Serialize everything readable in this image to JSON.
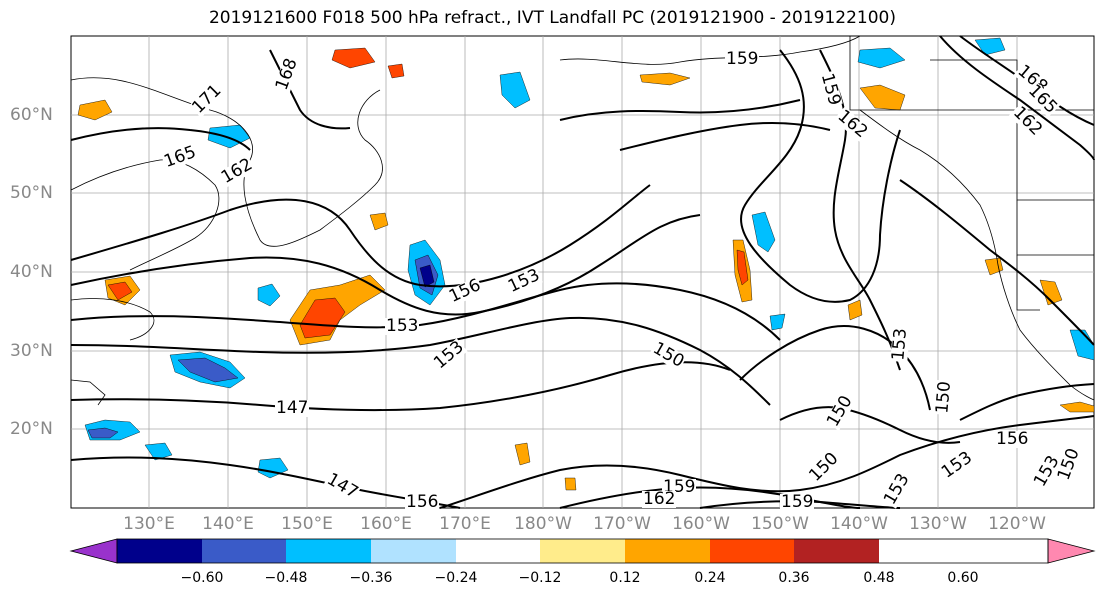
{
  "title": "2019121600 F018 500 hPa refract., IVT Landfall PC (2019121900 - 2019122100)",
  "lat_labels": [
    "60°N",
    "50°N",
    "40°N",
    "30°N",
    "20°N"
  ],
  "lon_labels": [
    "130°E",
    "140°E",
    "150°E",
    "160°E",
    "170°E",
    "180°W",
    "170°W",
    "160°W",
    "150°W",
    "140°W",
    "130°W",
    "120°W"
  ],
  "contour_labels": [
    "159",
    "168",
    "171",
    "165",
    "162",
    "168",
    "165",
    "162",
    "159",
    "162",
    "153",
    "156",
    "153",
    "153",
    "150",
    "147",
    "153",
    "150",
    "150",
    "153",
    "156",
    "153",
    "150",
    "159",
    "162",
    "159",
    "147",
    "156",
    "150",
    "153"
  ],
  "colorbar": {
    "colors": [
      "#9932cc",
      "#00008b",
      "#3a5bc8",
      "#00bfff",
      "#b0e2ff",
      "#ffffff",
      "#ffec8b",
      "#ffa500",
      "#ff4500",
      "#b22222",
      "#ff88b0"
    ],
    "tick_labels": [
      "−0.60",
      "−0.48",
      "−0.36",
      "−0.24",
      "−0.12",
      "0.12",
      "0.24",
      "0.36",
      "0.48",
      "0.60"
    ]
  }
}
